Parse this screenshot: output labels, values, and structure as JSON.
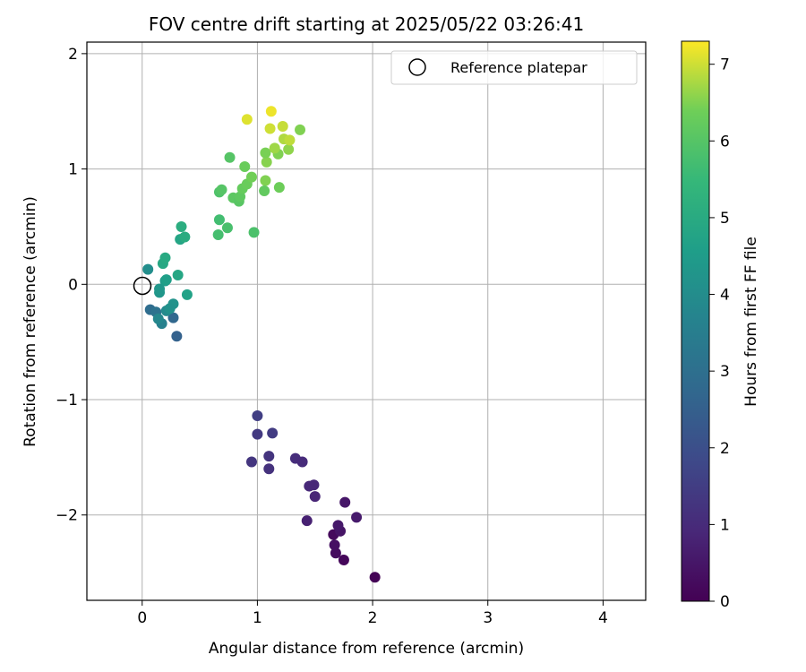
{
  "chart_data": {
    "type": "scatter",
    "title": "FOV centre drift starting at 2025/05/22 03:26:41",
    "xlabel": "Angular distance from reference (arcmin)",
    "ylabel": "Rotation from reference (arcmin)",
    "xlim": [
      -0.48,
      4.37
    ],
    "ylim": [
      -2.74,
      2.1
    ],
    "xticks": [
      0,
      1,
      2,
      3,
      4
    ],
    "yticks": [
      -2,
      -1,
      0,
      1,
      2
    ],
    "grid": true,
    "legend": {
      "placement": "top-right",
      "entries": [
        "Reference platepar"
      ]
    },
    "reference_point": {
      "x": 0,
      "y": 0,
      "label": "Reference platepar"
    },
    "colorbar": {
      "label": "Hours from first FF file",
      "range": [
        0,
        7.3
      ],
      "ticks": [
        0,
        1,
        2,
        3,
        4,
        5,
        6,
        7
      ],
      "colormap": "viridis"
    },
    "points": [
      {
        "x": 2.02,
        "y": -2.54,
        "c": 0.05
      },
      {
        "x": 1.75,
        "y": -2.39,
        "c": 0.15
      },
      {
        "x": 1.68,
        "y": -2.33,
        "c": 0.25
      },
      {
        "x": 1.67,
        "y": -2.26,
        "c": 0.35
      },
      {
        "x": 1.66,
        "y": -2.17,
        "c": 0.2
      },
      {
        "x": 1.72,
        "y": -2.14,
        "c": 0.45
      },
      {
        "x": 1.7,
        "y": -2.09,
        "c": 0.55
      },
      {
        "x": 1.86,
        "y": -2.02,
        "c": 0.6
      },
      {
        "x": 1.76,
        "y": -1.89,
        "c": 0.5
      },
      {
        "x": 1.43,
        "y": -2.05,
        "c": 0.75
      },
      {
        "x": 1.5,
        "y": -1.84,
        "c": 0.85
      },
      {
        "x": 1.45,
        "y": -1.75,
        "c": 0.95
      },
      {
        "x": 1.49,
        "y": -1.74,
        "c": 0.9
      },
      {
        "x": 1.33,
        "y": -1.51,
        "c": 1.05
      },
      {
        "x": 1.39,
        "y": -1.54,
        "c": 1.0
      },
      {
        "x": 1.1,
        "y": -1.6,
        "c": 1.2
      },
      {
        "x": 1.1,
        "y": -1.49,
        "c": 1.25
      },
      {
        "x": 0.95,
        "y": -1.54,
        "c": 1.3
      },
      {
        "x": 1.0,
        "y": -1.3,
        "c": 1.4
      },
      {
        "x": 1.13,
        "y": -1.29,
        "c": 1.45
      },
      {
        "x": 1.0,
        "y": -1.14,
        "c": 1.55
      },
      {
        "x": 0.3,
        "y": -0.45,
        "c": 2.55
      },
      {
        "x": 0.27,
        "y": -0.29,
        "c": 2.75
      },
      {
        "x": 0.07,
        "y": -0.22,
        "c": 2.9
      },
      {
        "x": 0.12,
        "y": -0.24,
        "c": 3.1
      },
      {
        "x": 0.17,
        "y": -0.34,
        "c": 3.6
      },
      {
        "x": 0.14,
        "y": -0.3,
        "c": 3.8
      },
      {
        "x": 0.21,
        "y": -0.23,
        "c": 3.9
      },
      {
        "x": 0.27,
        "y": -0.17,
        "c": 4.2
      },
      {
        "x": 0.24,
        "y": -0.21,
        "c": 4.15
      },
      {
        "x": 0.15,
        "y": -0.07,
        "c": 4.3
      },
      {
        "x": 0.15,
        "y": -0.04,
        "c": 4.35
      },
      {
        "x": 0.2,
        "y": 0.03,
        "c": 4.5
      },
      {
        "x": 0.21,
        "y": 0.04,
        "c": 4.6
      },
      {
        "x": 0.05,
        "y": 0.13,
        "c": 4.05
      },
      {
        "x": 0.31,
        "y": 0.08,
        "c": 4.85
      },
      {
        "x": 0.39,
        "y": -0.09,
        "c": 4.7
      },
      {
        "x": 0.18,
        "y": 0.18,
        "c": 4.9
      },
      {
        "x": 0.2,
        "y": 0.23,
        "c": 4.95
      },
      {
        "x": 0.33,
        "y": 0.39,
        "c": 4.8
      },
      {
        "x": 0.37,
        "y": 0.41,
        "c": 5.05
      },
      {
        "x": 0.34,
        "y": 0.5,
        "c": 5.1
      },
      {
        "x": 0.66,
        "y": 0.43,
        "c": 5.75
      },
      {
        "x": 0.74,
        "y": 0.49,
        "c": 5.8
      },
      {
        "x": 0.97,
        "y": 0.45,
        "c": 5.85
      },
      {
        "x": 0.67,
        "y": 0.56,
        "c": 5.7
      },
      {
        "x": 0.67,
        "y": 0.8,
        "c": 5.9
      },
      {
        "x": 0.69,
        "y": 0.82,
        "c": 6.0
      },
      {
        "x": 0.79,
        "y": 0.75,
        "c": 6.1
      },
      {
        "x": 0.84,
        "y": 0.72,
        "c": 6.05
      },
      {
        "x": 0.85,
        "y": 0.76,
        "c": 6.15
      },
      {
        "x": 0.87,
        "y": 0.83,
        "c": 6.25
      },
      {
        "x": 0.91,
        "y": 0.87,
        "c": 6.3
      },
      {
        "x": 0.95,
        "y": 0.93,
        "c": 6.4
      },
      {
        "x": 1.07,
        "y": 0.9,
        "c": 6.5
      },
      {
        "x": 1.06,
        "y": 0.81,
        "c": 6.2
      },
      {
        "x": 1.19,
        "y": 0.84,
        "c": 6.35
      },
      {
        "x": 0.89,
        "y": 1.02,
        "c": 6.3
      },
      {
        "x": 0.76,
        "y": 1.1,
        "c": 6.0
      },
      {
        "x": 1.08,
        "y": 1.06,
        "c": 6.55
      },
      {
        "x": 1.07,
        "y": 1.14,
        "c": 6.45
      },
      {
        "x": 1.18,
        "y": 1.13,
        "c": 6.5
      },
      {
        "x": 1.15,
        "y": 1.18,
        "c": 6.7
      },
      {
        "x": 1.27,
        "y": 1.17,
        "c": 6.6
      },
      {
        "x": 1.23,
        "y": 1.26,
        "c": 6.8
      },
      {
        "x": 1.28,
        "y": 1.25,
        "c": 6.9
      },
      {
        "x": 1.37,
        "y": 1.34,
        "c": 6.5
      },
      {
        "x": 1.11,
        "y": 1.35,
        "c": 7.0
      },
      {
        "x": 1.22,
        "y": 1.37,
        "c": 6.95
      },
      {
        "x": 0.91,
        "y": 1.43,
        "c": 7.1
      },
      {
        "x": 1.12,
        "y": 1.5,
        "c": 7.2
      }
    ]
  }
}
